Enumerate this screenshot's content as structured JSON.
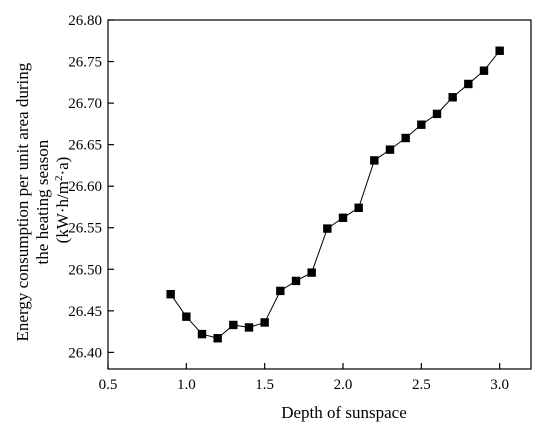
{
  "chart_data": {
    "type": "line",
    "xlabel": "Depth of sunspace",
    "ylabel_lines": [
      "Energy consumption per unit area during",
      "the heating season"
    ],
    "ylabel_unit": {
      "open": "(kW·h/m",
      "sup": "2",
      "close": "·a)"
    },
    "xlim": [
      0.5,
      3.2
    ],
    "ylim": [
      26.38,
      26.8
    ],
    "xticks": [
      "0.5",
      "1.0",
      "1.5",
      "2.0",
      "2.5",
      "3.0"
    ],
    "yticks": [
      "26.40",
      "26.45",
      "26.50",
      "26.55",
      "26.60",
      "26.65",
      "26.70",
      "26.75",
      "26.80"
    ],
    "marker": "square",
    "color": "#000000",
    "series": [
      {
        "x": [
          0.9,
          1.0,
          1.1,
          1.2,
          1.3,
          1.4,
          1.5,
          1.6,
          1.7,
          1.8,
          1.9,
          2.0,
          2.1,
          2.2,
          2.3,
          2.4,
          2.5,
          2.6,
          2.7,
          2.8,
          2.9,
          3.0
        ],
        "values": [
          26.47,
          26.443,
          26.422,
          26.417,
          26.433,
          26.43,
          26.436,
          26.474,
          26.486,
          26.496,
          26.549,
          26.562,
          26.574,
          26.631,
          26.644,
          26.658,
          26.674,
          26.687,
          26.707,
          26.723,
          26.739,
          26.763
        ]
      }
    ]
  }
}
